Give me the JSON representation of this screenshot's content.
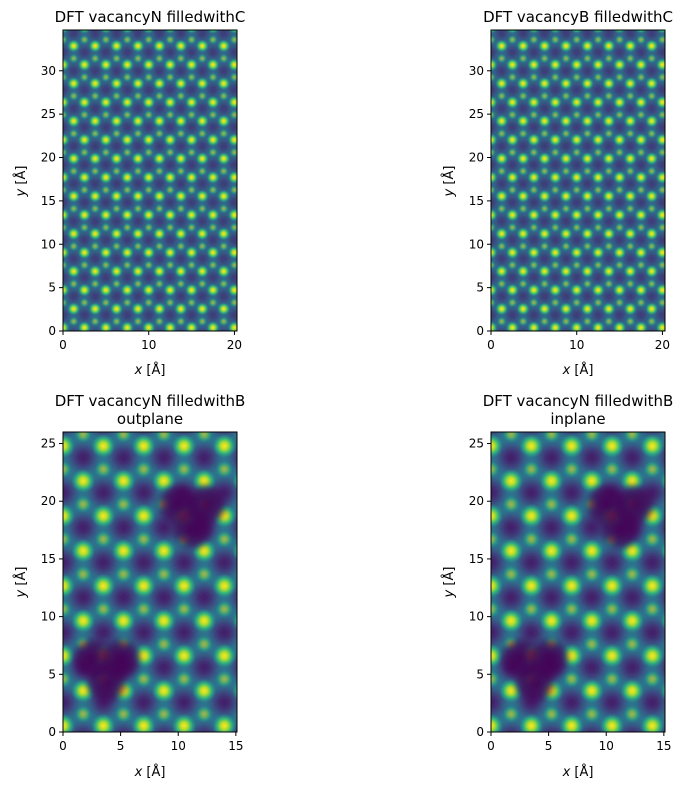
{
  "colormap": {
    "name": "viridis",
    "stops": [
      "#440154",
      "#3b528b",
      "#21918c",
      "#5ec962",
      "#fde725"
    ]
  },
  "chart_data": [
    {
      "type": "heatmap",
      "title_lines": [
        "DFT vacancyN filledwithC"
      ],
      "xlabel_var": "x",
      "ylabel_var": "y",
      "label_unit": " [Å]",
      "xlim": [
        0,
        20.3
      ],
      "ylim": [
        0,
        34.7
      ],
      "xticks": [
        0,
        10,
        20
      ],
      "yticks": [
        0,
        5,
        10,
        15,
        20,
        25,
        30
      ],
      "pattern": "honeycomb atomic lattice, lattice constant ~2.5 Å, bright atoms on dark background",
      "lattice_constant": 2.5,
      "defects": []
    },
    {
      "type": "heatmap",
      "title_lines": [
        "DFT vacancyB filledwithC"
      ],
      "xlabel_var": "x",
      "ylabel_var": "y",
      "label_unit": " [Å]",
      "xlim": [
        0,
        20.3
      ],
      "ylim": [
        0,
        34.7
      ],
      "xticks": [
        0,
        10,
        20
      ],
      "yticks": [
        0,
        5,
        10,
        15,
        20,
        25,
        30
      ],
      "pattern": "honeycomb atomic lattice, lattice constant ~2.5 Å, bright atoms on dark background",
      "lattice_constant": 2.5,
      "defects": []
    },
    {
      "type": "heatmap",
      "title_lines": [
        "DFT vacancyN filledwithB",
        "outplane"
      ],
      "xlabel_var": "x",
      "ylabel_var": "y",
      "label_unit": " [Å]",
      "xlim": [
        0,
        15.1
      ],
      "ylim": [
        0,
        26.0
      ],
      "xticks": [
        0,
        5,
        10,
        15
      ],
      "yticks": [
        0,
        5,
        10,
        15,
        20,
        25
      ],
      "pattern": "honeycomb atomic lattice, lattice constant ~3.5 Å, with two dark triangular defect regions",
      "lattice_constant": 3.5,
      "defects": [
        {
          "x": 3.8,
          "y": 5.5
        },
        {
          "x": 11.2,
          "y": 18.8
        }
      ]
    },
    {
      "type": "heatmap",
      "title_lines": [
        "DFT vacancyN filledwithB",
        "inplane"
      ],
      "xlabel_var": "x",
      "ylabel_var": "y",
      "label_unit": " [Å]",
      "xlim": [
        0,
        15.1
      ],
      "ylim": [
        0,
        26.0
      ],
      "xticks": [
        0,
        5,
        10,
        15
      ],
      "yticks": [
        0,
        5,
        10,
        15,
        20,
        25
      ],
      "pattern": "honeycomb atomic lattice, lattice constant ~3.5 Å, with two dark triangular defect regions",
      "lattice_constant": 3.5,
      "defects": [
        {
          "x": 3.8,
          "y": 5.5
        },
        {
          "x": 11.2,
          "y": 18.8
        }
      ]
    }
  ]
}
